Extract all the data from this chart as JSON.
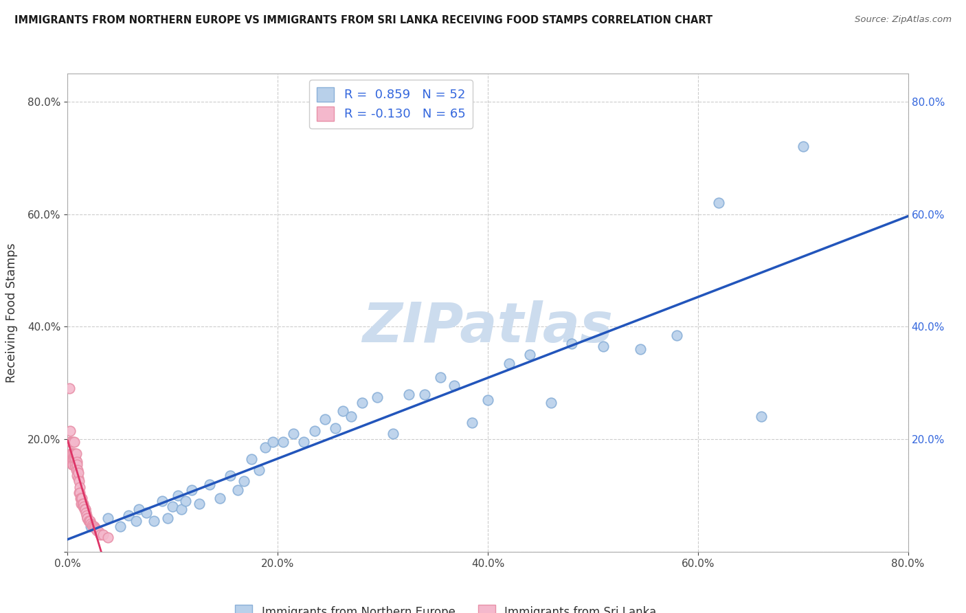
{
  "title": "IMMIGRANTS FROM NORTHERN EUROPE VS IMMIGRANTS FROM SRI LANKA RECEIVING FOOD STAMPS CORRELATION CHART",
  "source": "Source: ZipAtlas.com",
  "ylabel": "Receiving Food Stamps",
  "blue_r": 0.859,
  "blue_n": 52,
  "pink_r": -0.13,
  "pink_n": 65,
  "blue_color": "#b8d0ea",
  "blue_edge": "#8ab0d8",
  "pink_color": "#f4b8cc",
  "pink_edge": "#e890a8",
  "blue_line_color": "#2255bb",
  "pink_line_color": "#dd3366",
  "watermark_color": "#ccdcee",
  "legend_label_blue": "Immigrants from Northern Europe",
  "legend_label_pink": "Immigrants from Sri Lanka",
  "r_color": "#3366dd",
  "n_color": "#3366dd",
  "xlim": [
    0.0,
    0.8
  ],
  "ylim": [
    0.0,
    0.85
  ],
  "xticks": [
    0.0,
    0.2,
    0.4,
    0.6,
    0.8
  ],
  "yticks": [
    0.0,
    0.2,
    0.4,
    0.6,
    0.8
  ],
  "grid_color": "#cccccc",
  "bg_color": "#ffffff",
  "blue_x": [
    0.022,
    0.038,
    0.05,
    0.058,
    0.065,
    0.068,
    0.075,
    0.082,
    0.09,
    0.095,
    0.1,
    0.105,
    0.108,
    0.112,
    0.118,
    0.125,
    0.135,
    0.145,
    0.155,
    0.162,
    0.168,
    0.175,
    0.182,
    0.188,
    0.195,
    0.205,
    0.215,
    0.225,
    0.235,
    0.245,
    0.255,
    0.262,
    0.27,
    0.28,
    0.295,
    0.31,
    0.325,
    0.34,
    0.355,
    0.368,
    0.385,
    0.4,
    0.42,
    0.44,
    0.46,
    0.48,
    0.51,
    0.545,
    0.58,
    0.62,
    0.66,
    0.7
  ],
  "blue_y": [
    0.045,
    0.06,
    0.045,
    0.065,
    0.055,
    0.075,
    0.07,
    0.055,
    0.09,
    0.06,
    0.08,
    0.1,
    0.075,
    0.09,
    0.11,
    0.085,
    0.12,
    0.095,
    0.135,
    0.11,
    0.125,
    0.165,
    0.145,
    0.185,
    0.195,
    0.195,
    0.21,
    0.195,
    0.215,
    0.235,
    0.22,
    0.25,
    0.24,
    0.265,
    0.275,
    0.21,
    0.28,
    0.28,
    0.31,
    0.295,
    0.23,
    0.27,
    0.335,
    0.35,
    0.265,
    0.37,
    0.365,
    0.36,
    0.385,
    0.62,
    0.24,
    0.72
  ],
  "pink_x": [
    0.002,
    0.0022,
    0.0025,
    0.0028,
    0.003,
    0.0032,
    0.0035,
    0.0038,
    0.004,
    0.0042,
    0.0045,
    0.0048,
    0.005,
    0.0052,
    0.0055,
    0.0058,
    0.006,
    0.0062,
    0.0065,
    0.0068,
    0.007,
    0.0072,
    0.0075,
    0.0078,
    0.008,
    0.0085,
    0.0088,
    0.009,
    0.0092,
    0.0095,
    0.01,
    0.0105,
    0.0108,
    0.011,
    0.0115,
    0.0118,
    0.012,
    0.0125,
    0.013,
    0.0135,
    0.014,
    0.0145,
    0.015,
    0.0155,
    0.016,
    0.0165,
    0.017,
    0.0175,
    0.018,
    0.0185,
    0.019,
    0.02,
    0.0205,
    0.021,
    0.022,
    0.023,
    0.024,
    0.025,
    0.026,
    0.027,
    0.028,
    0.0295,
    0.031,
    0.034,
    0.038
  ],
  "pink_y": [
    0.29,
    0.215,
    0.195,
    0.175,
    0.195,
    0.165,
    0.16,
    0.175,
    0.165,
    0.155,
    0.175,
    0.165,
    0.195,
    0.155,
    0.17,
    0.175,
    0.195,
    0.17,
    0.165,
    0.16,
    0.175,
    0.155,
    0.165,
    0.15,
    0.145,
    0.175,
    0.16,
    0.155,
    0.135,
    0.145,
    0.13,
    0.14,
    0.105,
    0.125,
    0.115,
    0.105,
    0.095,
    0.095,
    0.085,
    0.095,
    0.085,
    0.08,
    0.085,
    0.08,
    0.075,
    0.075,
    0.075,
    0.07,
    0.065,
    0.06,
    0.06,
    0.055,
    0.055,
    0.055,
    0.05,
    0.048,
    0.045,
    0.045,
    0.042,
    0.04,
    0.038,
    0.035,
    0.03,
    0.03,
    0.025
  ]
}
